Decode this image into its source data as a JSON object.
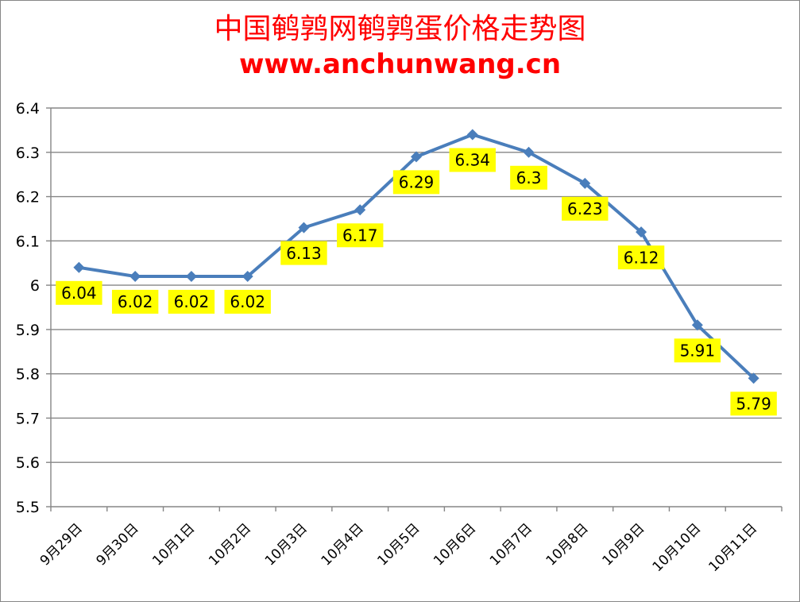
{
  "title": "中国鹌鹑网鹌鹑蛋价格走势图",
  "subtitle": "www.anchunwang.cn",
  "colors": {
    "title": "#ff0000",
    "line": "#4a7ebb",
    "marker": "#4a7ebb",
    "data_label_bg": "#ffff00",
    "gridline": "#868686"
  },
  "chart_data": {
    "type": "line",
    "title": "中国鹌鹑网鹌鹑蛋价格走势图",
    "subtitle": "www.anchunwang.cn",
    "categories": [
      "9月29日",
      "9月30日",
      "10月1日",
      "10月2日",
      "10月3日",
      "10月4日",
      "10月5日",
      "10月6日",
      "10月7日",
      "10月8日",
      "10月9日",
      "10月10日",
      "10月11日"
    ],
    "series": [
      {
        "values": [
          6.04,
          6.02,
          6.02,
          6.02,
          6.13,
          6.17,
          6.29,
          6.34,
          6.3,
          6.23,
          6.12,
          5.91,
          5.79
        ]
      }
    ],
    "data_labels": [
      "6.04",
      "6.02",
      "6.02",
      "6.02",
      "6.13",
      "6.17",
      "6.29",
      "6.34",
      "6.3",
      "6.23",
      "6.12",
      "5.91",
      "5.79"
    ],
    "y_ticks": [
      "6.4",
      "6.3",
      "6.2",
      "6.1",
      "6",
      "5.9",
      "5.8",
      "5.7",
      "5.6",
      "5.5"
    ],
    "ylim": [
      5.5,
      6.4
    ],
    "grid": true,
    "legend": "none",
    "marker": "diamond"
  }
}
